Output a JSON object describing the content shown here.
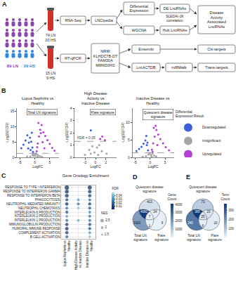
{
  "diagram": {
    "label": "A",
    "cohort": {
      "ln": "89 LN",
      "hs": "29 HS"
    },
    "rnaseq_group": [
      "74 LN",
      "20 HS"
    ],
    "qpcr_group": [
      "15 LN",
      "9 HS"
    ],
    "nodes": {
      "rnaseq": "RNA-Seq",
      "qpcr": "RT-qPCR",
      "lncipedia": "LNCipedia",
      "de": "Differential Expression",
      "wgcna": "WGCNA",
      "de_lnc": "DE LncRNAs",
      "hub_lnc": "Hub LncRNAs",
      "sledai": "SLEDAI-2K correlation",
      "activity": "Disease Activity Associated LncRNAs",
      "ensembl": "Ensembl",
      "lncactdb": "LncACTDB",
      "mirwalk": "miRWalk",
      "cis": "Cis-targets",
      "trans": "Trans-targets"
    },
    "lncrnas": [
      "NRIR",
      "KLHDC7B-DT",
      "FAM30A",
      "MIR600HG"
    ]
  },
  "chart_data": [
    {
      "label": "B",
      "type": "scatter",
      "marker": "circle",
      "grid": false,
      "legend": "right",
      "legend_title": "Differential Expression Result",
      "panels": [
        {
          "title": "Lupus Nephritis vs Healthy",
          "signature": "Total LN signature",
          "xlabel": "LogFC",
          "ylabel": "-Log10(FDR)",
          "xlim": [
            -6,
            8
          ],
          "xticks": [
            -5,
            0,
            5
          ],
          "ylim": [
            0,
            16
          ],
          "yticks": [
            0,
            5,
            10,
            15
          ],
          "fdr_threshold": 0.05,
          "series": [
            {
              "name": "Downregulated",
              "color": "#3d5fd9",
              "x": [
                -0.8,
                -1.2,
                -1.6,
                -2.0,
                -2.5,
                -3.1,
                -3.8,
                -4.5,
                -1.0,
                -1.4,
                -2.2,
                -0.6
              ],
              "y": [
                3.2,
                5.1,
                6.4,
                4.8,
                7.2,
                5.5,
                4.1,
                3.0,
                8.0,
                2.4,
                2.9,
                1.8
              ]
            },
            {
              "name": "Insignificant",
              "color": "#a6a6a6",
              "x": [
                -1.5,
                -0.8,
                -0.3,
                0.2,
                0.6,
                1.1,
                1.7,
                2.4,
                -2.6,
                0.9,
                -0.5,
                0.4
              ],
              "y": [
                0.3,
                0.8,
                1.0,
                0.5,
                1.1,
                0.7,
                0.4,
                0.2,
                0.3,
                0.2,
                0.5,
                1.2
              ]
            },
            {
              "name": "Upregulated",
              "color": "#b23fd6",
              "x": [
                0.6,
                1.0,
                1.4,
                1.8,
                2.3,
                2.9,
                3.5,
                4.2,
                5.0,
                5.8,
                6.6,
                1.2,
                2.0,
                2.6,
                0.8,
                3.2
              ],
              "y": [
                2.0,
                4.5,
                6.8,
                9.0,
                10.5,
                8.2,
                7.0,
                5.6,
                4.4,
                3.1,
                2.2,
                11.2,
                7.9,
                5.0,
                3.3,
                3.0
              ]
            }
          ]
        },
        {
          "title": "High Disease Activity vs Inactive Disease",
          "signature": "Flare signature",
          "xlabel": "LogFC",
          "ylabel": "-Log10(FDR)",
          "xlim": [
            -4,
            4
          ],
          "xticks": [
            -2,
            0,
            2
          ],
          "ylim": [
            0,
            4
          ],
          "yticks": [
            0,
            1,
            2,
            3,
            4
          ],
          "fdr_threshold": 0.05,
          "threshold_label": "FDR = 0.05",
          "series": [
            {
              "name": "Downregulated",
              "color": "#3d5fd9",
              "x": [
                -0.9
              ],
              "y": [
                2.2
              ]
            },
            {
              "name": "Insignificant",
              "color": "#a6a6a6",
              "x": [
                -2.0,
                -1.2,
                -0.6,
                -0.2,
                0.3,
                0.7,
                1.2,
                2.1,
                -0.9,
                0.5
              ],
              "y": [
                0.2,
                0.6,
                0.9,
                0.4,
                0.8,
                1.0,
                0.5,
                0.3,
                0.3,
                0.2
              ]
            },
            {
              "name": "Upregulated",
              "color": "#b23fd6",
              "x": [
                0.9,
                1.3,
                1.8
              ],
              "y": [
                1.5,
                1.7,
                1.4
              ]
            }
          ]
        },
        {
          "title": "Inactive Disease vs Healthy",
          "signature": "Quiescent disease signature",
          "xlabel": "LogFC",
          "ylabel": "-Log10(FDR)",
          "xlim": [
            -6,
            8
          ],
          "xticks": [
            -5,
            0,
            5
          ],
          "ylim": [
            0,
            14
          ],
          "yticks": [
            0,
            5,
            10
          ],
          "fdr_threshold": 0.05,
          "series": [
            {
              "name": "Downregulated",
              "color": "#3d5fd9",
              "x": [
                -0.7,
                -1.1,
                -1.6,
                -2.2,
                -2.9,
                -3.7,
                -4.6,
                -1.3,
                -0.9
              ],
              "y": [
                2.0,
                3.5,
                4.8,
                3.9,
                3.0,
                2.4,
                1.8,
                6.1,
                4.2
              ]
            },
            {
              "name": "Insignificant",
              "color": "#a6a6a6",
              "x": [
                -1.4,
                -0.6,
                -0.1,
                0.3,
                0.8,
                1.3,
                2.0,
                -2.5,
                0.5
              ],
              "y": [
                0.3,
                0.8,
                1.0,
                0.6,
                1.1,
                0.5,
                0.3,
                0.2,
                0.2
              ]
            },
            {
              "name": "Upregulated",
              "color": "#b23fd6",
              "x": [
                0.6,
                1.0,
                1.5,
                2.1,
                2.7,
                3.4,
                4.3,
                5.2,
                6.3,
                1.2,
                1.8,
                2.4,
                0.8
              ],
              "y": [
                2.2,
                4.0,
                5.9,
                7.8,
                6.5,
                5.2,
                4.0,
                2.9,
                2.0,
                8.4,
                9.0,
                3.5,
                1.6
              ]
            }
          ]
        }
      ]
    },
    {
      "label": "C",
      "type": "dot",
      "title": "Gene Ontology Enrichment",
      "grid": true,
      "terms": [
        "RESPONSE TO TYPE I INTERFERON",
        "RESPONSE TO INTERFERON GAMMA",
        "RESPONSE TO INTERFERON BETA",
        "PHAGOCYTOSIS",
        "NEUTROPHIL MEDIATED IMMUNITY",
        "NEUTROPHIL CHEMOTAXIS",
        "INTERLEUKIN 6 PRODUCTION",
        "INTERLEUKIN 2 PRODUCTION",
        "INTERLEUKIN 1 PRODUCTION",
        "IMMUNOGLOBULIN PRODUCTION",
        "HUMORAL IMMUNE RESPONSE",
        "COMPLEMENT ACTIVATION",
        "B CELL ACTIVATION"
      ],
      "comparisons": [
        "Lupus Nephritis vs Healthy",
        "High Disease Activity vs Inactive Disease",
        "Inactive Disease vs Healthy"
      ],
      "fdr": [
        [
          0.001,
          null,
          0.001
        ],
        [
          0.002,
          null,
          0.004
        ],
        [
          0.003,
          null,
          0.006
        ],
        [
          0.01,
          0.03,
          0.02
        ],
        [
          0.004,
          0.02,
          0.008
        ],
        [
          0.02,
          0.04,
          0.015
        ],
        [
          0.012,
          null,
          0.025
        ],
        [
          0.03,
          null,
          0.02
        ],
        [
          0.018,
          0.035,
          0.02
        ],
        [
          0.006,
          null,
          0.01
        ],
        [
          0.005,
          null,
          0.012
        ],
        [
          0.008,
          null,
          0.03
        ],
        [
          0.015,
          null,
          0.04
        ]
      ],
      "nes": [
        [
          2.6,
          null,
          2.4
        ],
        [
          2.3,
          null,
          2.1
        ],
        [
          2.2,
          null,
          2.0
        ],
        [
          1.8,
          1.6,
          1.7
        ],
        [
          2.0,
          1.7,
          1.9
        ],
        [
          1.7,
          1.5,
          1.8
        ],
        [
          1.8,
          null,
          1.6
        ],
        [
          1.6,
          null,
          1.7
        ],
        [
          1.7,
          1.6,
          1.7
        ],
        [
          2.0,
          null,
          1.9
        ],
        [
          2.1,
          null,
          1.8
        ],
        [
          2.0,
          null,
          1.6
        ],
        [
          1.8,
          null,
          1.5
        ]
      ],
      "color_title": "FDR",
      "color_range": [
        0,
        0.05
      ],
      "color_ticks": [
        0.01,
        0.02,
        0.03,
        0.04
      ],
      "size_title": "NES",
      "size_ticks": [
        1.5,
        2,
        2.5
      ]
    },
    {
      "label": "D",
      "type": "venn",
      "sets": [
        "Quiescent disease signature",
        "Total LN signature",
        "Flare signature"
      ],
      "regions": [
        {
          "sets": [
            "Quiescent disease signature"
          ],
          "value": 413
        },
        {
          "sets": [
            "Total LN signature"
          ],
          "value": 1920
        },
        {
          "sets": [
            "Flare signature"
          ],
          "value": 9
        },
        {
          "sets": [
            "Quiescent disease signature",
            "Total LN signature"
          ],
          "value": 4060
        },
        {
          "sets": [
            "Quiescent disease signature",
            "Flare signature"
          ],
          "value": 24
        },
        {
          "sets": [
            "Total LN signature",
            "Flare signature"
          ],
          "value": 1
        },
        {
          "sets": [
            "Quiescent disease signature",
            "Total LN signature",
            "Flare signature"
          ],
          "value": 7
        }
      ],
      "color_title": "Gene Count",
      "color_range": [
        0,
        4100
      ],
      "color_ticks": [
        1000,
        2000,
        3000,
        4000
      ]
    },
    {
      "label": "E",
      "type": "venn",
      "sets": [
        "Quiescent disease signature",
        "Total LN signature",
        "Flare signature"
      ],
      "regions": [
        {
          "sets": [
            "Quiescent disease signature"
          ],
          "value": 73
        },
        {
          "sets": [
            "Total LN signature"
          ],
          "value": 245
        },
        {
          "sets": [
            "Flare signature"
          ],
          "value": 10
        },
        {
          "sets": [
            "Quiescent disease signature",
            "Total LN signature"
          ],
          "value": 365
        },
        {
          "sets": [
            "Quiescent disease signature",
            "Flare signature"
          ],
          "value": 23
        },
        {
          "sets": [
            "Total LN signature",
            "Flare signature"
          ],
          "value": 6
        },
        {
          "sets": [
            "Quiescent disease signature",
            "Total LN signature",
            "Flare signature"
          ],
          "value": 25
        }
      ],
      "color_title": "Term Count",
      "color_range": [
        0,
        370
      ],
      "color_ticks": [
        100,
        200,
        300
      ]
    }
  ]
}
